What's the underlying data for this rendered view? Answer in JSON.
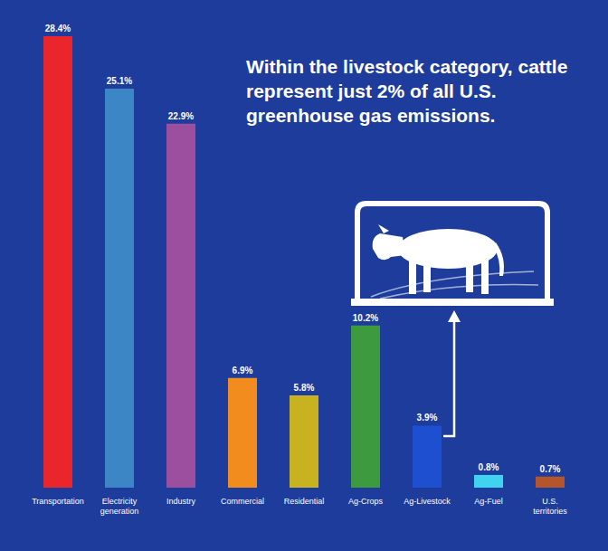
{
  "chart_data": {
    "type": "bar",
    "annotation": "Within the livestock category, cattle represent just 2% of all U.S. greenhouse gas emissions.",
    "categories": [
      "Transportation",
      "Electricity generation",
      "Industry",
      "Commercial",
      "Residential",
      "Ag-Crops",
      "Ag-Livestock",
      "Ag-Fuel",
      "U.S. territories"
    ],
    "values": [
      28.4,
      25.1,
      22.9,
      6.9,
      5.8,
      10.2,
      3.9,
      0.8,
      0.7
    ],
    "value_labels": [
      "28.4%",
      "25.1%",
      "22.9%",
      "6.9%",
      "5.8%",
      "10.2%",
      "3.9%",
      "0.8%",
      "0.7%"
    ],
    "colors": [
      "#e8262b",
      "#3c86c6",
      "#9b4f9e",
      "#f28c1e",
      "#c9b21f",
      "#3e9a3e",
      "#1e4fd1",
      "#3fd3f0",
      "#b5552b"
    ],
    "data_labels": true,
    "tick_labels": "x",
    "grid": false
  }
}
